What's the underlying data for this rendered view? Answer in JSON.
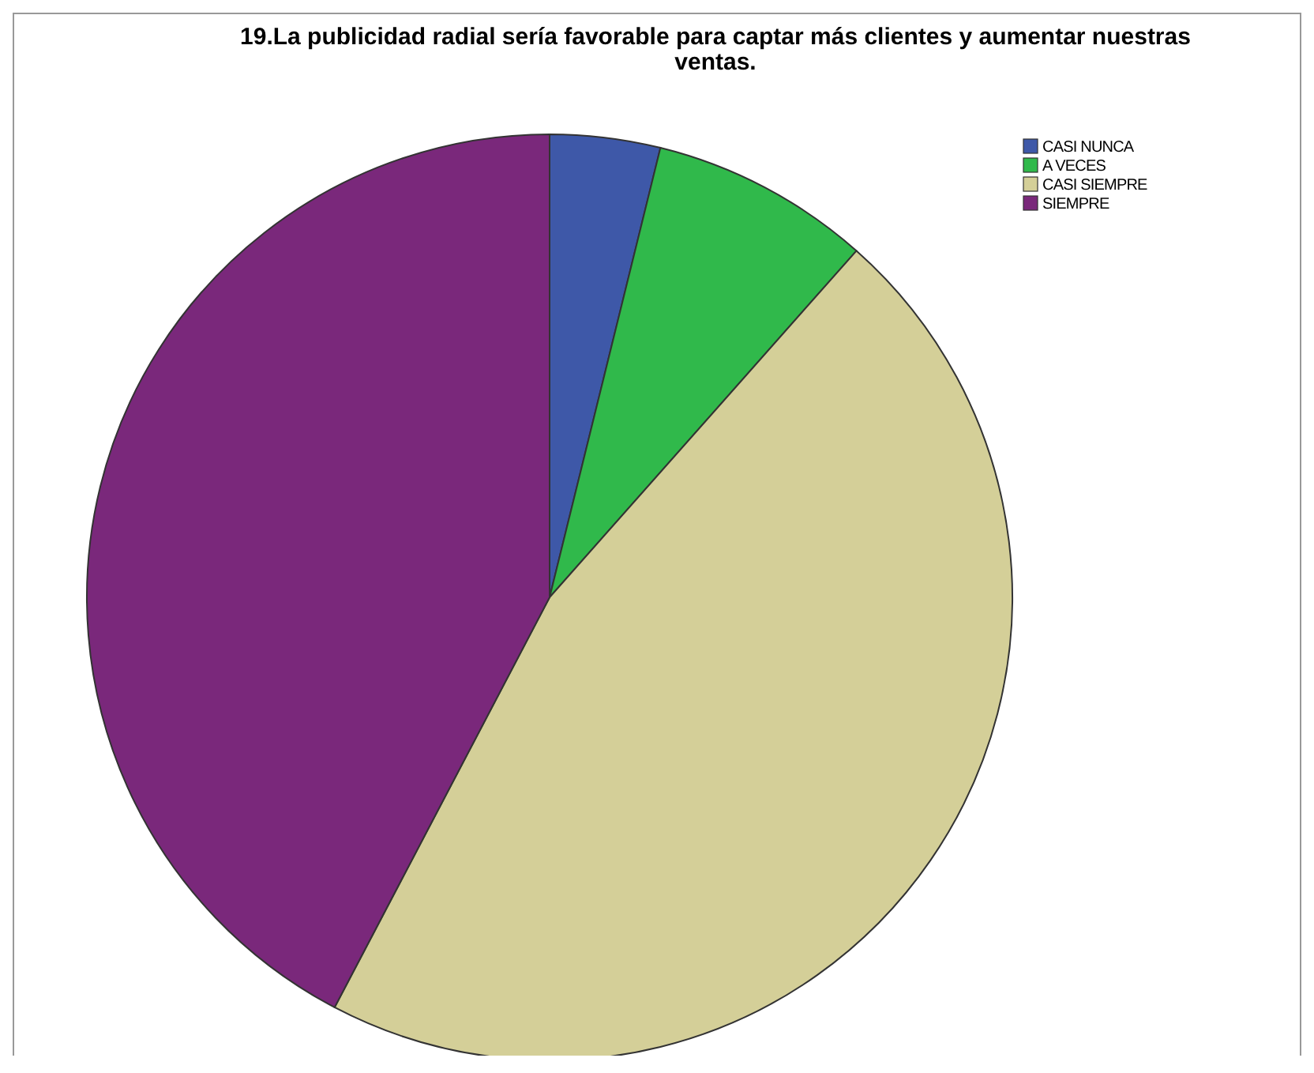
{
  "chart_data": {
    "type": "pie",
    "title": "19.La publicidad radial sería favorable para captar más clientes y aumentar nuestras ventas.",
    "categories": [
      "CASI NUNCA",
      "A VECES",
      "CASI SIEMPRE",
      "SIEMPRE"
    ],
    "values": [
      3.85,
      7.69,
      46.15,
      42.31
    ],
    "colors": [
      "#3e58a8",
      "#30b94b",
      "#d4cf98",
      "#7a287b"
    ],
    "legend": "top right"
  }
}
